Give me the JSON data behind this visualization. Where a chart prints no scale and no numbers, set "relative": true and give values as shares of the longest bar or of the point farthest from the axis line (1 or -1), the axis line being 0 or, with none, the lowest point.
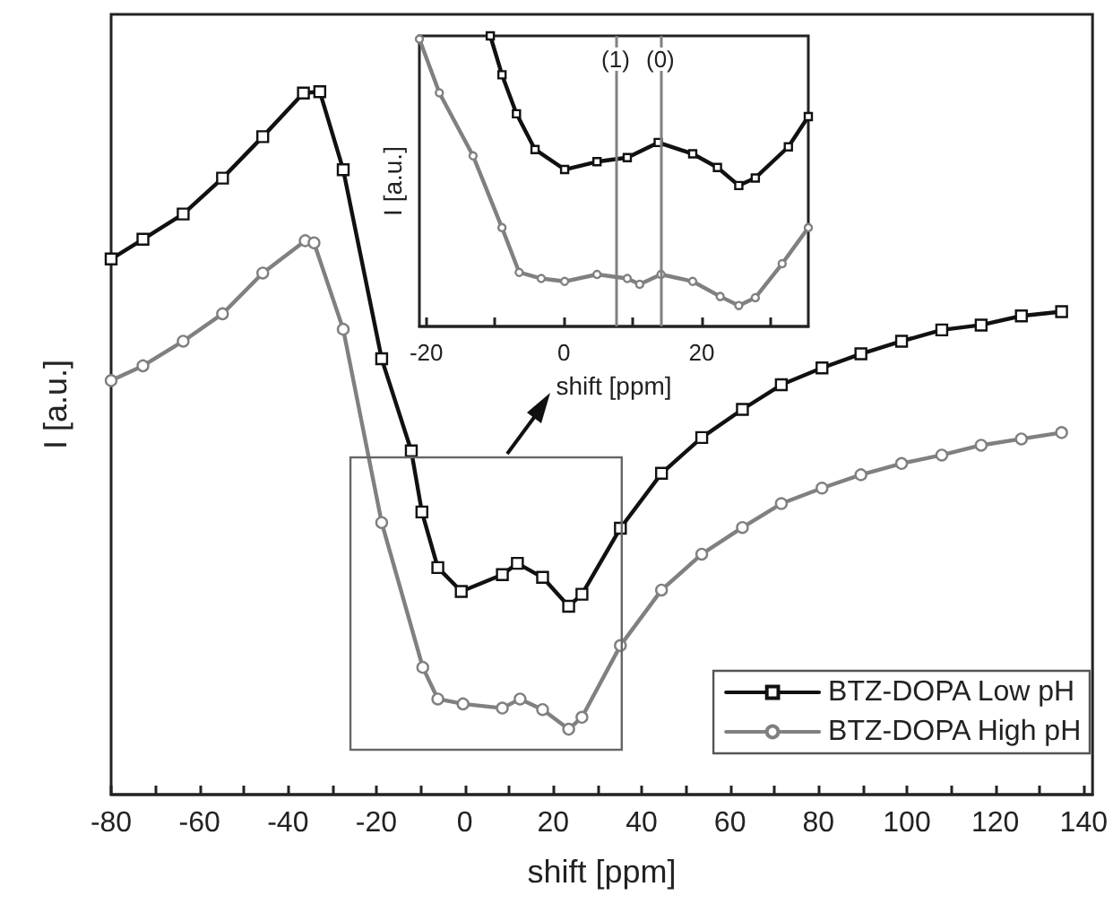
{
  "chart_data": [
    {
      "type": "line",
      "xlabel": "shift [ppm]",
      "ylabel": "I [a.u.]",
      "relative": true,
      "legend": "bottom right",
      "xlim": [
        -80,
        142
      ],
      "xticks": [
        -80,
        {
          "value": -70,
          "label": null
        },
        -60,
        {
          "value": -50,
          "label": null
        },
        -40,
        {
          "value": -30,
          "label": null
        },
        -20,
        {
          "value": -10,
          "label": null
        },
        0,
        {
          "value": 10,
          "label": null
        },
        20,
        {
          "value": 30,
          "label": null
        },
        40,
        {
          "value": 50,
          "label": null
        },
        60,
        {
          "value": 70,
          "label": null
        },
        80,
        {
          "value": 90,
          "label": null
        },
        100,
        {
          "value": 110,
          "label": null
        },
        120,
        {
          "value": 130,
          "label": null
        },
        140
      ],
      "series": [
        {
          "name": "BTZ-DOPA Low pH",
          "color": "#111111",
          "marker": "square",
          "x": [
            -80,
            -72.8,
            -63.7,
            -54.8,
            -45.7,
            -36.5,
            -32.8,
            -27.5,
            -18.8,
            -12.1,
            -9.7,
            -6.1,
            -0.8,
            8.5,
            11.9,
            17.6,
            23.5,
            26.5,
            35.2,
            44.5,
            53.6,
            62.8,
            71.6,
            80.8,
            89.6,
            98.8,
            107.9,
            116.8,
            125.9,
            135
          ],
          "values": [
            0.762,
            0.79,
            0.826,
            0.877,
            0.936,
            0.998,
            1.0,
            0.889,
            0.62,
            0.489,
            0.402,
            0.323,
            0.289,
            0.313,
            0.329,
            0.309,
            0.268,
            0.285,
            0.379,
            0.457,
            0.508,
            0.548,
            0.583,
            0.607,
            0.627,
            0.645,
            0.661,
            0.668,
            0.681,
            0.687
          ]
        },
        {
          "name": "BTZ-DOPA High pH",
          "color": "#808080",
          "marker": "circle",
          "x": [
            -80,
            -72.8,
            -63.7,
            -54.8,
            -45.7,
            -36.1,
            -34.1,
            -27.5,
            -18.8,
            -9.5,
            -6.1,
            -0.4,
            8.5,
            12.5,
            17.6,
            23.5,
            26.5,
            35.2,
            44.5,
            53.6,
            62.8,
            71.6,
            80.8,
            89.6,
            98.8,
            107.9,
            116.8,
            125.9,
            135
          ],
          "values": [
            0.589,
            0.61,
            0.645,
            0.684,
            0.742,
            0.788,
            0.785,
            0.662,
            0.387,
            0.181,
            0.136,
            0.129,
            0.123,
            0.136,
            0.121,
            0.093,
            0.11,
            0.212,
            0.291,
            0.342,
            0.38,
            0.414,
            0.436,
            0.455,
            0.471,
            0.483,
            0.497,
            0.506,
            0.515
          ]
        }
      ]
    },
    {
      "type": "line",
      "xlabel": "shift [ppm]",
      "ylabel": "I [a.u.]",
      "relative": true,
      "xlim": [
        -21,
        35.5
      ],
      "xticks": [
        -20,
        {
          "value": -10,
          "label": null
        },
        0,
        {
          "value": 10,
          "label": null
        },
        20,
        {
          "value": 30,
          "label": null
        }
      ],
      "ref_lines": [
        {
          "axis": "x",
          "value": 7.5,
          "color": "#808080"
        },
        {
          "axis": "x",
          "value": 14,
          "color": "#808080"
        }
      ],
      "annotations": [
        {
          "text": "(1)",
          "x": 7.5,
          "y": 0.92
        },
        {
          "text": "(0)",
          "x": 14,
          "y": 0.92
        }
      ],
      "series": [
        {
          "color": "#111111",
          "marker": "square",
          "x": [
            -10.7,
            -9.0,
            -6.9,
            -4.2,
            0.1,
            4.8,
            9.2,
            13.7,
            18.7,
            22.3,
            25.4,
            27.8,
            32.6,
            35.5
          ],
          "values": [
            1.0,
            0.866,
            0.732,
            0.609,
            0.54,
            0.567,
            0.581,
            0.633,
            0.594,
            0.547,
            0.485,
            0.511,
            0.618,
            0.722
          ]
        },
        {
          "color": "#808080",
          "marker": "circle",
          "x": [
            -21,
            -18.1,
            -13.2,
            -9.0,
            -6.5,
            -3.3,
            0.1,
            4.8,
            9.2,
            11.0,
            14.1,
            18.7,
            22.7,
            25.4,
            27.8,
            31.7,
            35.5
          ],
          "values": [
            0.989,
            0.804,
            0.587,
            0.34,
            0.186,
            0.165,
            0.155,
            0.179,
            0.165,
            0.145,
            0.179,
            0.155,
            0.103,
            0.072,
            0.099,
            0.216,
            0.34
          ]
        }
      ]
    }
  ]
}
